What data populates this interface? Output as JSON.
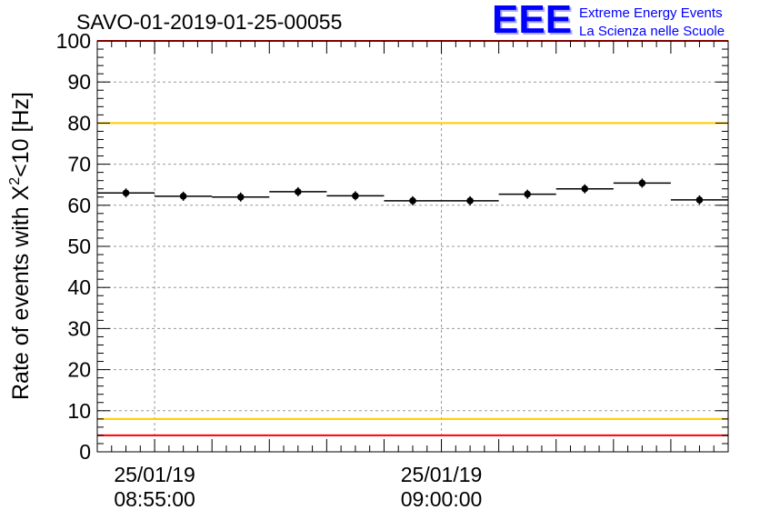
{
  "chart_data": {
    "type": "scatter",
    "title": "SAVO-01-2019-01-25-00055",
    "ylabel_main": "Rate of events with ",
    "ylabel_chi": "X",
    "ylabel_sup": "2",
    "ylabel_tail": "<10 [Hz]",
    "ylim": [
      0,
      100
    ],
    "y_ticks": [
      "0",
      "10",
      "20",
      "30",
      "40",
      "50",
      "60",
      "70",
      "80",
      "90",
      "100"
    ],
    "x_tick_labels": [
      {
        "date": "25/01/19",
        "time": "08:55:00",
        "minutes": 0
      },
      {
        "date": "25/01/19",
        "time": "09:00:00",
        "minutes": 5
      }
    ],
    "x_range_minutes": [
      -1.0,
      10.0
    ],
    "bin_width_minutes": 1.0,
    "points": [
      {
        "x": -0.5,
        "y": 63.0
      },
      {
        "x": 0.5,
        "y": 62.2
      },
      {
        "x": 1.5,
        "y": 62.0
      },
      {
        "x": 2.5,
        "y": 63.3
      },
      {
        "x": 3.5,
        "y": 62.3
      },
      {
        "x": 4.5,
        "y": 61.1
      },
      {
        "x": 5.5,
        "y": 61.1
      },
      {
        "x": 6.5,
        "y": 62.7
      },
      {
        "x": 7.5,
        "y": 64.0
      },
      {
        "x": 8.5,
        "y": 65.4
      },
      {
        "x": 9.5,
        "y": 61.3
      }
    ],
    "reference_lines": [
      {
        "y": 100,
        "color": "#ff0000"
      },
      {
        "y": 80,
        "color": "#ffcc00"
      },
      {
        "y": 8,
        "color": "#ffcc00"
      },
      {
        "y": 4,
        "color": "#ff0000"
      }
    ],
    "grid": true
  },
  "logo": {
    "letters": "EEE",
    "line1": "Extreme Energy Events",
    "line2": "La Scienza nelle Scuole",
    "color": "#0000ff"
  }
}
